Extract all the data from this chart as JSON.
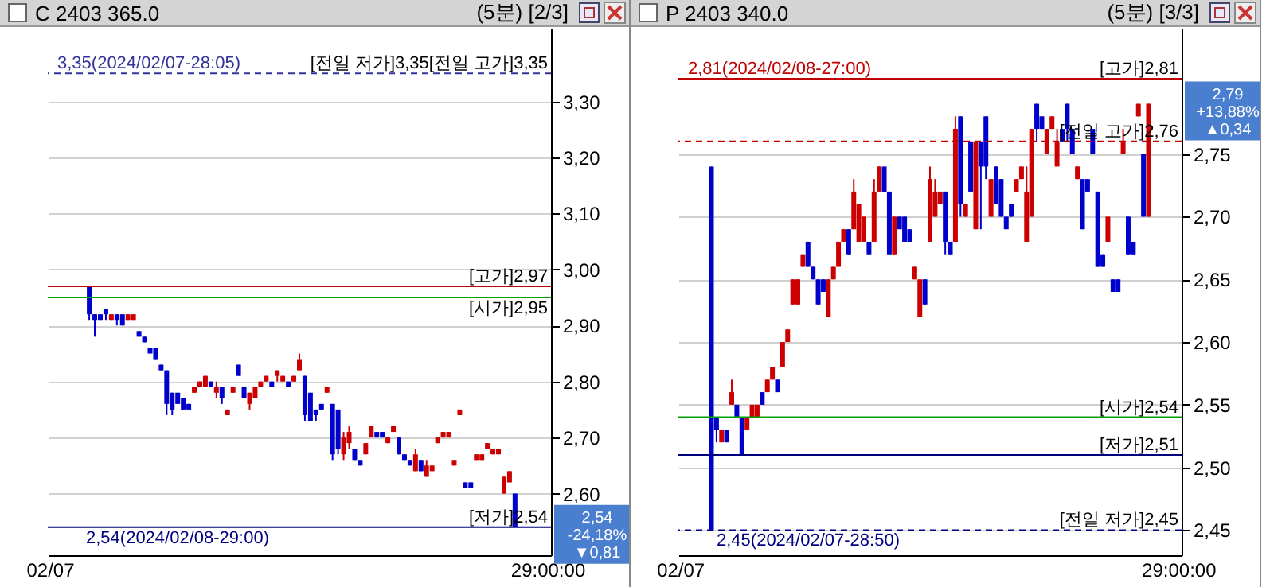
{
  "chart_data": [
    {
      "type": "candlestick",
      "title": "C 2403 365.0",
      "subtitle": "(5분) [2/3]",
      "categories": [
        "02/07",
        null,
        null,
        null,
        null,
        null,
        null,
        null,
        null,
        null,
        null,
        null,
        null,
        null,
        null,
        null,
        null,
        null,
        null,
        null,
        null,
        null,
        null,
        null,
        null,
        null,
        null,
        null,
        null,
        null,
        null,
        null,
        null,
        null,
        null,
        null,
        null,
        null,
        null,
        null,
        null,
        null,
        null,
        null,
        null,
        null,
        null,
        null,
        null,
        null,
        null,
        null,
        null,
        null,
        null,
        null,
        null,
        null,
        null,
        null,
        null,
        null,
        null,
        null,
        null,
        null,
        null,
        null,
        null,
        null,
        null,
        null,
        null,
        null,
        null,
        null,
        null,
        null,
        null,
        null,
        null,
        null,
        null,
        null,
        null,
        null,
        null,
        null,
        null,
        null,
        "29:00:00"
      ],
      "ohlc": [
        null,
        null,
        null,
        null,
        null,
        null,
        null,
        [
          2.97,
          2.97,
          2.91,
          2.92
        ],
        [
          2.92,
          2.92,
          2.88,
          2.91
        ],
        [
          2.92,
          2.92,
          2.91,
          2.91
        ],
        [
          2.93,
          2.93,
          2.91,
          2.92
        ],
        [
          2.91,
          2.92,
          2.91,
          2.92
        ],
        [
          2.92,
          2.92,
          2.9,
          2.91
        ],
        [
          2.92,
          2.92,
          2.9,
          2.9
        ],
        [
          2.91,
          2.92,
          2.91,
          2.92
        ],
        [
          2.91,
          2.92,
          2.91,
          2.92
        ],
        [
          2.89,
          2.89,
          2.88,
          2.88
        ],
        [
          2.88,
          2.88,
          2.87,
          2.87
        ],
        [
          2.86,
          2.86,
          2.85,
          2.85
        ],
        [
          2.86,
          2.86,
          2.84,
          2.84
        ],
        [
          2.83,
          2.83,
          2.82,
          2.82
        ],
        [
          2.82,
          2.82,
          2.74,
          2.76
        ],
        [
          2.78,
          2.78,
          2.74,
          2.75
        ],
        [
          2.78,
          2.78,
          2.76,
          2.76
        ],
        [
          2.77,
          2.77,
          2.75,
          2.75
        ],
        [
          2.76,
          2.76,
          2.75,
          2.75
        ],
        [
          2.78,
          2.79,
          2.78,
          2.79
        ],
        [
          2.79,
          2.8,
          2.79,
          2.8
        ],
        [
          2.79,
          2.81,
          2.79,
          2.81
        ],
        [
          2.8,
          2.8,
          2.79,
          2.79
        ],
        [
          2.78,
          2.8,
          2.77,
          2.79
        ],
        [
          2.79,
          2.79,
          2.76,
          2.77
        ],
        [
          2.74,
          2.75,
          2.74,
          2.75
        ],
        [
          2.78,
          2.79,
          2.78,
          2.79
        ],
        [
          2.83,
          2.83,
          2.81,
          2.81
        ],
        [
          2.79,
          2.79,
          2.77,
          2.77
        ],
        [
          2.76,
          2.78,
          2.75,
          2.78
        ],
        [
          2.77,
          2.79,
          2.77,
          2.79
        ],
        [
          2.79,
          2.8,
          2.79,
          2.8
        ],
        [
          2.8,
          2.81,
          2.8,
          2.81
        ],
        [
          2.8,
          2.8,
          2.79,
          2.79
        ],
        [
          2.81,
          2.82,
          2.8,
          2.82
        ],
        [
          2.8,
          2.81,
          2.8,
          2.81
        ],
        [
          2.8,
          2.8,
          2.79,
          2.79
        ],
        [
          2.8,
          2.81,
          2.8,
          2.81
        ],
        [
          2.82,
          2.85,
          2.82,
          2.84
        ],
        [
          2.81,
          2.81,
          2.73,
          2.74
        ],
        [
          2.78,
          2.78,
          2.73,
          2.73
        ],
        [
          2.75,
          2.75,
          2.73,
          2.74
        ],
        [
          2.76,
          2.76,
          2.75,
          2.75
        ],
        [
          2.78,
          2.79,
          2.78,
          2.79
        ],
        [
          2.76,
          2.76,
          2.66,
          2.67
        ],
        [
          2.75,
          2.75,
          2.67,
          2.68
        ],
        [
          2.67,
          2.71,
          2.66,
          2.7
        ],
        [
          2.69,
          2.72,
          2.68,
          2.71
        ],
        [
          2.68,
          2.68,
          2.66,
          2.66
        ],
        [
          2.66,
          2.66,
          2.65,
          2.65
        ],
        [
          2.67,
          2.69,
          2.67,
          2.69
        ],
        [
          2.7,
          2.72,
          2.7,
          2.72
        ],
        [
          2.71,
          2.71,
          2.7,
          2.7
        ],
        [
          2.71,
          2.71,
          2.7,
          2.7
        ],
        [
          2.69,
          2.7,
          2.69,
          2.7
        ],
        [
          2.71,
          2.72,
          2.71,
          2.72
        ],
        [
          2.7,
          2.7,
          2.67,
          2.67
        ],
        [
          2.67,
          2.67,
          2.66,
          2.66
        ],
        [
          2.66,
          2.66,
          2.65,
          2.65
        ],
        [
          2.64,
          2.68,
          2.64,
          2.67
        ],
        [
          2.66,
          2.66,
          2.64,
          2.64
        ],
        [
          2.63,
          2.66,
          2.63,
          2.65
        ],
        [
          2.64,
          2.65,
          2.64,
          2.65
        ],
        [
          2.69,
          2.7,
          2.69,
          2.7
        ],
        [
          2.7,
          2.71,
          2.7,
          2.71
        ],
        [
          2.7,
          2.71,
          2.7,
          2.71
        ],
        [
          2.65,
          2.66,
          2.65,
          2.66
        ],
        [
          2.74,
          2.75,
          2.74,
          2.75
        ],
        [
          2.62,
          2.62,
          2.61,
          2.61
        ],
        [
          2.62,
          2.62,
          2.61,
          2.61
        ],
        [
          2.66,
          2.67,
          2.66,
          2.67
        ],
        [
          2.66,
          2.67,
          2.66,
          2.67
        ],
        [
          2.68,
          2.69,
          2.68,
          2.69
        ],
        [
          2.67,
          2.68,
          2.67,
          2.68
        ],
        [
          2.67,
          2.68,
          2.67,
          2.68
        ],
        [
          2.6,
          2.63,
          2.6,
          2.63
        ],
        [
          2.62,
          2.64,
          2.62,
          2.64
        ],
        [
          2.6,
          2.6,
          2.54,
          2.54
        ],
        null,
        null,
        null,
        null,
        null,
        null
      ],
      "colors": [
        null,
        null,
        null,
        null,
        null,
        null,
        null,
        "#0000cc",
        "#0000cc",
        "#0000cc",
        "#0000cc",
        "#cc0000",
        "#0000cc",
        "#0000cc",
        "#cc0000",
        "#cc0000",
        "#0000cc",
        "#0000cc",
        "#0000cc",
        "#0000cc",
        "#0000cc",
        "#0000cc",
        "#0000cc",
        "#0000cc",
        "#0000cc",
        "#0000cc",
        "#cc0000",
        "#cc0000",
        "#cc0000",
        "#0000cc",
        "#cc0000",
        "#0000cc",
        "#cc0000",
        "#cc0000",
        "#0000cc",
        "#0000cc",
        "#cc0000",
        "#cc0000",
        "#cc0000",
        "#cc0000",
        "#0000cc",
        "#cc0000",
        "#cc0000",
        "#0000cc",
        "#cc0000",
        "#cc0000",
        "#0000cc",
        "#0000cc",
        "#0000cc",
        "#0000cc",
        "#cc0000",
        "#0000cc",
        "#0000cc",
        "#cc0000",
        "#cc0000",
        "#0000cc",
        "#0000cc",
        "#cc0000",
        "#cc0000",
        "#0000cc",
        "#0000cc",
        "#cc0000",
        "#cc0000",
        "#0000cc",
        "#0000cc",
        "#0000cc",
        "#cc0000",
        "#0000cc",
        "#cc0000",
        "#cc0000",
        "#cc0000",
        "#cc0000",
        "#cc0000",
        "#cc0000",
        "#cc0000",
        "#0000cc",
        "#0000cc",
        "#cc0000",
        "#cc0000",
        "#cc0000",
        "#cc0000",
        "#cc0000",
        "#cc0000",
        "#cc0000",
        "#0000cc",
        null,
        null,
        null,
        null,
        null,
        null
      ],
      "ylim": [
        2.49,
        3.43
      ],
      "yticks": [
        {
          "value": 2.6,
          "label": "2,60"
        },
        {
          "value": 2.7,
          "label": "2,70"
        },
        {
          "value": 2.8,
          "label": "2,80"
        },
        {
          "value": 2.9,
          "label": "2,90"
        },
        {
          "value": 3.0,
          "label": "3,00"
        },
        {
          "value": 3.1,
          "label": "3,10"
        },
        {
          "value": 3.2,
          "label": "3,20"
        },
        {
          "value": 3.3,
          "label": "3,30"
        }
      ],
      "grid": "y",
      "ref_lines": [
        {
          "axis": "y",
          "value": 3.35,
          "label": "[전일 저가]3,35[전일 고가]3,35",
          "color": "#333399",
          "line_style": "dashed"
        },
        {
          "axis": "y",
          "value": 2.97,
          "label": "[고가]2,97",
          "color": "#c00000"
        },
        {
          "axis": "y",
          "value": 2.95,
          "label": "[시가]2,95",
          "color": "#00a000"
        },
        {
          "axis": "y",
          "value": 2.54,
          "label": "[저가]2,54",
          "color": "#000080"
        }
      ],
      "annotations": [
        {
          "text": "3,35(2024/02/07-28:05)",
          "y": 3.35
        },
        {
          "text": "2,54(2024/02/08-29:00)",
          "y": 2.54
        },
        "2,54\n-24,18%\n▼0,81"
      ]
    },
    {
      "type": "candlestick",
      "title": "P 2403 340.0",
      "subtitle": "(5분) [3/3]",
      "categories": [
        "02/07",
        null,
        null,
        null,
        null,
        null,
        null,
        null,
        null,
        null,
        null,
        null,
        null,
        null,
        null,
        null,
        null,
        null,
        null,
        null,
        null,
        null,
        null,
        null,
        null,
        null,
        null,
        null,
        null,
        null,
        null,
        null,
        null,
        null,
        null,
        null,
        null,
        null,
        null,
        null,
        null,
        null,
        null,
        null,
        null,
        null,
        null,
        null,
        null,
        null,
        null,
        null,
        null,
        null,
        null,
        null,
        null,
        null,
        null,
        null,
        null,
        null,
        null,
        null,
        null,
        null,
        null,
        null,
        null,
        null,
        null,
        null,
        null,
        null,
        null,
        null,
        null,
        null,
        null,
        null,
        null,
        null,
        null,
        null,
        null,
        null,
        null,
        null,
        null,
        null,
        null,
        null,
        null,
        null,
        null,
        null,
        null,
        null,
        "29:00:00"
      ],
      "ohlc": [
        null,
        null,
        null,
        null,
        null,
        null,
        [
          2.74,
          2.74,
          2.45,
          2.45
        ],
        [
          2.54,
          2.54,
          2.52,
          2.53
        ],
        [
          2.52,
          2.53,
          2.52,
          2.53
        ],
        [
          2.53,
          2.53,
          2.52,
          2.52
        ],
        [
          2.55,
          2.57,
          2.55,
          2.56
        ],
        [
          2.55,
          2.55,
          2.54,
          2.54
        ],
        [
          2.54,
          2.54,
          2.51,
          2.51
        ],
        [
          2.53,
          2.54,
          2.53,
          2.54
        ],
        [
          2.54,
          2.55,
          2.54,
          2.55
        ],
        [
          2.54,
          2.55,
          2.54,
          2.55
        ],
        [
          2.56,
          2.56,
          2.55,
          2.55
        ],
        [
          2.56,
          2.57,
          2.56,
          2.57
        ],
        [
          2.57,
          2.58,
          2.57,
          2.58
        ],
        [
          2.57,
          2.57,
          2.56,
          2.56
        ],
        [
          2.58,
          2.6,
          2.58,
          2.6
        ],
        [
          2.6,
          2.61,
          2.6,
          2.61
        ],
        [
          2.63,
          2.65,
          2.63,
          2.65
        ],
        [
          2.63,
          2.65,
          2.63,
          2.65
        ],
        [
          2.66,
          2.67,
          2.66,
          2.67
        ],
        [
          2.68,
          2.68,
          2.66,
          2.66
        ],
        [
          2.66,
          2.66,
          2.65,
          2.65
        ],
        [
          2.65,
          2.65,
          2.63,
          2.63
        ],
        [
          2.65,
          2.65,
          2.64,
          2.64
        ],
        [
          2.62,
          2.65,
          2.62,
          2.65
        ],
        [
          2.65,
          2.66,
          2.65,
          2.66
        ],
        [
          2.66,
          2.68,
          2.66,
          2.68
        ],
        [
          2.68,
          2.69,
          2.68,
          2.69
        ],
        [
          2.69,
          2.69,
          2.67,
          2.67
        ],
        [
          2.69,
          2.73,
          2.69,
          2.72
        ],
        [
          2.68,
          2.71,
          2.68,
          2.71
        ],
        [
          2.68,
          2.7,
          2.68,
          2.7
        ],
        [
          2.68,
          2.68,
          2.67,
          2.67
        ],
        [
          2.68,
          2.73,
          2.68,
          2.72
        ],
        [
          2.72,
          2.74,
          2.72,
          2.74
        ],
        [
          2.74,
          2.74,
          2.72,
          2.72
        ],
        [
          2.72,
          2.72,
          2.67,
          2.67
        ],
        [
          2.67,
          2.7,
          2.67,
          2.7
        ],
        [
          2.7,
          2.7,
          2.69,
          2.69
        ],
        [
          2.7,
          2.7,
          2.68,
          2.68
        ],
        [
          2.69,
          2.69,
          2.68,
          2.68
        ],
        [
          2.65,
          2.66,
          2.65,
          2.66
        ],
        [
          2.62,
          2.65,
          2.62,
          2.65
        ],
        [
          2.65,
          2.65,
          2.63,
          2.63
        ],
        [
          2.68,
          2.74,
          2.68,
          2.73
        ],
        [
          2.7,
          2.73,
          2.7,
          2.72
        ],
        [
          2.71,
          2.72,
          2.71,
          2.72
        ],
        [
          2.72,
          2.72,
          2.67,
          2.68
        ],
        [
          2.68,
          2.68,
          2.67,
          2.67
        ],
        [
          2.68,
          2.78,
          2.68,
          2.77
        ],
        [
          2.78,
          2.78,
          2.7,
          2.71
        ],
        [
          2.7,
          2.71,
          2.7,
          2.71
        ],
        [
          2.76,
          2.76,
          2.72,
          2.72
        ],
        [
          2.69,
          2.76,
          2.69,
          2.76
        ],
        [
          2.76,
          2.76,
          2.69,
          2.74
        ],
        [
          2.78,
          2.78,
          2.73,
          2.74
        ],
        [
          2.7,
          2.73,
          2.7,
          2.73
        ],
        [
          2.74,
          2.74,
          2.71,
          2.71
        ],
        [
          2.73,
          2.73,
          2.7,
          2.7
        ],
        [
          2.7,
          2.7,
          2.69,
          2.69
        ],
        [
          2.71,
          2.71,
          2.7,
          2.7
        ],
        [
          2.72,
          2.73,
          2.72,
          2.73
        ],
        [
          2.73,
          2.74,
          2.73,
          2.74
        ],
        [
          2.68,
          2.74,
          2.68,
          2.72
        ],
        [
          2.7,
          2.77,
          2.7,
          2.77
        ],
        [
          2.79,
          2.79,
          2.76,
          2.77
        ],
        [
          2.78,
          2.78,
          2.77,
          2.77
        ],
        [
          2.75,
          2.77,
          2.75,
          2.77
        ],
        [
          2.77,
          2.78,
          2.77,
          2.78
        ],
        [
          2.74,
          2.77,
          2.74,
          2.76
        ],
        [
          2.77,
          2.77,
          2.76,
          2.76
        ],
        [
          2.79,
          2.79,
          2.76,
          2.77
        ],
        [
          2.77,
          2.77,
          2.75,
          2.75
        ],
        [
          2.73,
          2.74,
          2.73,
          2.74
        ],
        [
          2.73,
          2.73,
          2.69,
          2.69
        ],
        [
          2.73,
          2.73,
          2.72,
          2.72
        ],
        [
          2.77,
          2.77,
          2.75,
          2.75
        ],
        [
          2.72,
          2.72,
          2.66,
          2.66
        ],
        [
          2.67,
          2.67,
          2.66,
          2.66
        ],
        [
          2.68,
          2.7,
          2.68,
          2.7
        ],
        [
          2.65,
          2.65,
          2.64,
          2.64
        ],
        [
          2.65,
          2.65,
          2.64,
          2.64
        ],
        [
          2.75,
          2.77,
          2.75,
          2.76
        ],
        [
          2.7,
          2.7,
          2.67,
          2.67
        ],
        [
          2.68,
          2.68,
          2.67,
          2.67
        ],
        [
          2.78,
          2.79,
          2.78,
          2.79
        ],
        [
          2.75,
          2.75,
          2.7,
          2.7
        ],
        [
          2.7,
          2.79,
          2.7,
          2.79
        ],
        null,
        null,
        null,
        null,
        null,
        null
      ],
      "colors": [
        null,
        null,
        null,
        null,
        null,
        null,
        "#0000cc",
        "#0000cc",
        "#cc0000",
        "#0000cc",
        "#cc0000",
        "#0000cc",
        "#0000cc",
        "#cc0000",
        "#cc0000",
        "#cc0000",
        "#0000cc",
        "#cc0000",
        "#cc0000",
        "#0000cc",
        "#cc0000",
        "#cc0000",
        "#cc0000",
        "#cc0000",
        "#cc0000",
        "#0000cc",
        "#0000cc",
        "#0000cc",
        "#0000cc",
        "#cc0000",
        "#cc0000",
        "#cc0000",
        "#cc0000",
        "#0000cc",
        "#cc0000",
        "#cc0000",
        "#cc0000",
        "#0000cc",
        "#cc0000",
        "#cc0000",
        "#0000cc",
        "#0000cc",
        "#cc0000",
        "#0000cc",
        "#0000cc",
        "#0000cc",
        "#cc0000",
        "#cc0000",
        "#0000cc",
        "#cc0000",
        "#cc0000",
        "#cc0000",
        "#0000cc",
        "#0000cc",
        "#cc0000",
        "#0000cc",
        "#cc0000",
        "#0000cc",
        "#cc0000",
        "#0000cc",
        "#0000cc",
        "#cc0000",
        "#0000cc",
        "#0000cc",
        "#0000cc",
        "#0000cc",
        "#cc0000",
        "#cc0000",
        "#cc0000",
        "#cc0000",
        "#0000cc",
        "#0000cc",
        "#cc0000",
        "#cc0000",
        "#cc0000",
        "#0000cc",
        "#0000cc",
        "#0000cc",
        "#cc0000",
        "#0000cc",
        "#0000cc",
        "#0000cc",
        "#0000cc",
        "#0000cc",
        "#cc0000",
        "#0000cc",
        "#0000cc",
        "#cc0000",
        "#0000cc",
        "#0000cc",
        "#cc0000",
        "#0000cc",
        "#cc0000",
        null,
        null,
        null,
        null,
        null,
        null
      ],
      "ylim": [
        2.43,
        2.85
      ],
      "yticks": [
        {
          "value": 2.45,
          "label": "2,45"
        },
        {
          "value": 2.5,
          "label": "2,50"
        },
        {
          "value": 2.55,
          "label": "2,55"
        },
        {
          "value": 2.6,
          "label": "2,60"
        },
        {
          "value": 2.65,
          "label": "2,65"
        },
        {
          "value": 2.7,
          "label": "2,70"
        },
        {
          "value": 2.75,
          "label": "2,75"
        }
      ],
      "grid": "y",
      "ref_lines": [
        {
          "axis": "y",
          "value": 2.81,
          "label": "[고가]2,81",
          "color": "#c00000"
        },
        {
          "axis": "y",
          "value": 2.76,
          "label": "[전일 고가]2,76",
          "color": "#c00000",
          "line_style": "dashed"
        },
        {
          "axis": "y",
          "value": 2.54,
          "label": "[시가]2,54",
          "color": "#00a000"
        },
        {
          "axis": "y",
          "value": 2.51,
          "label": "[저가]2,51",
          "color": "#000080"
        },
        {
          "axis": "y",
          "value": 2.45,
          "label": "[전일 저가]2,45",
          "color": "#000080",
          "line_style": "dashed"
        }
      ],
      "annotations": [
        {
          "text": "2,81(2024/02/08-27:00)",
          "y": 2.81
        },
        {
          "text": "2,45(2024/02/07-28:50)",
          "y": 2.45
        },
        "2,79\n+13,88%\n▲0,34"
      ]
    }
  ]
}
